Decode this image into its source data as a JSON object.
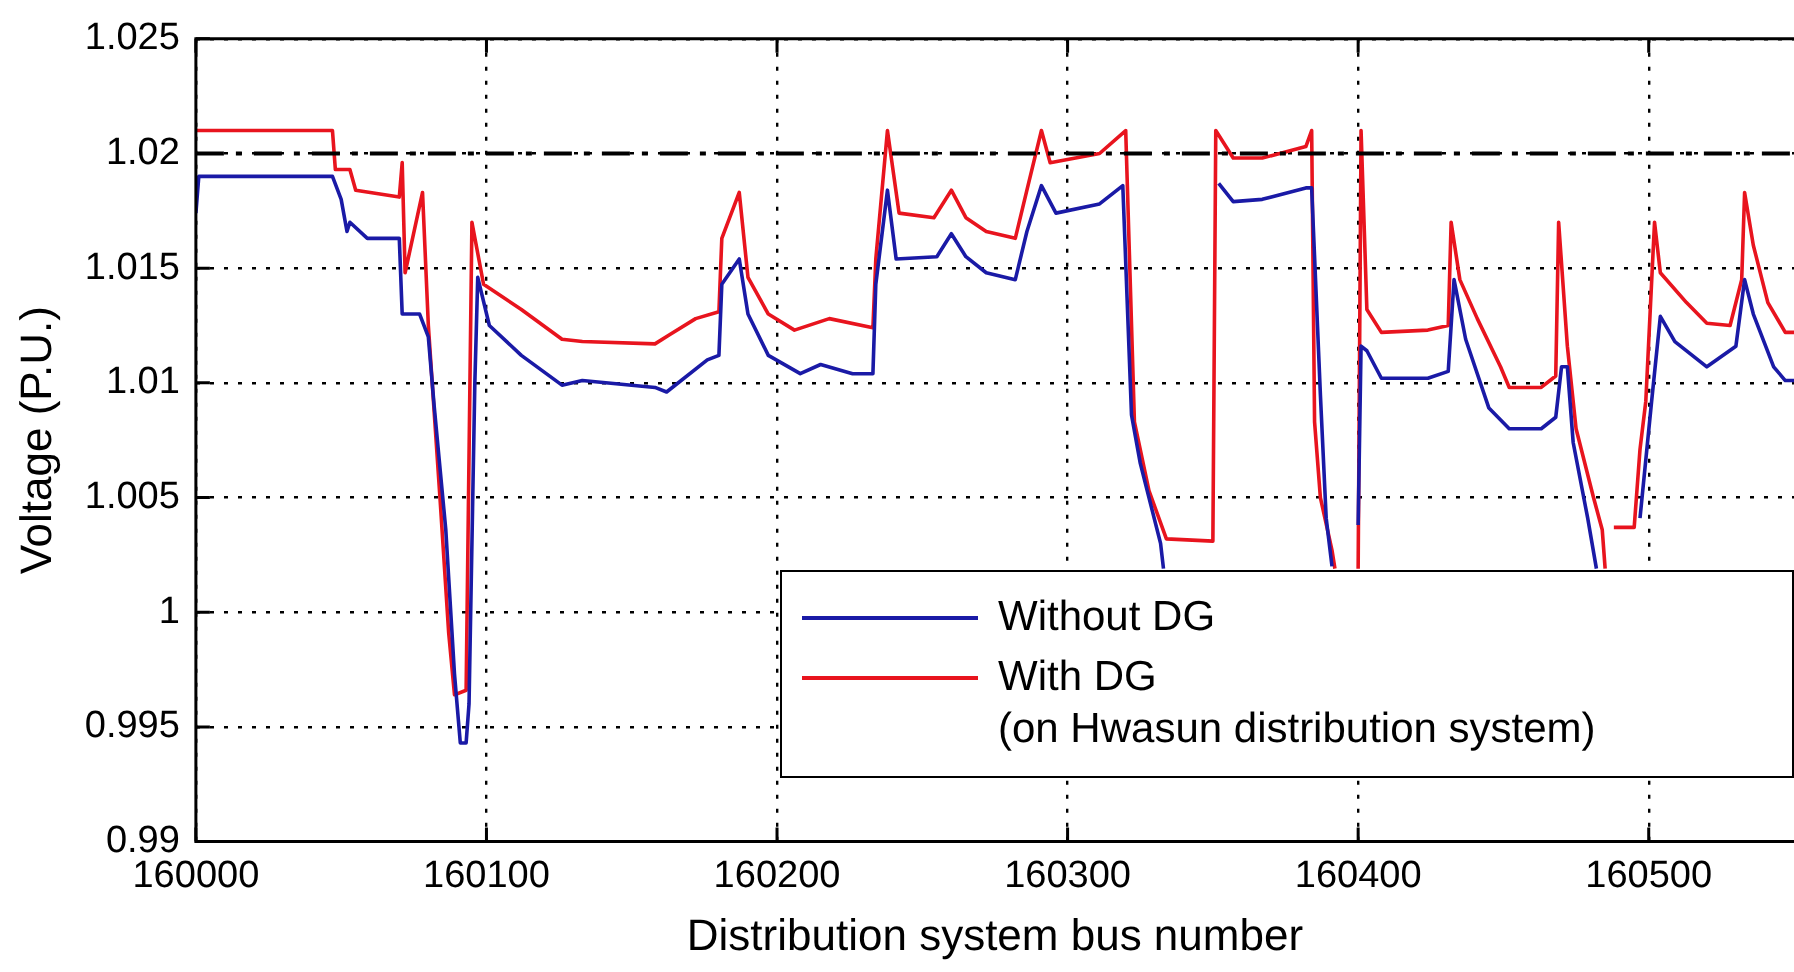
{
  "chart_data": {
    "type": "line",
    "xlabel": "Distribution system bus number",
    "ylabel": "Voltage (P.U.)",
    "xlim": [
      160000,
      160550
    ],
    "xticks": [
      160000,
      160100,
      160200,
      160300,
      160400,
      160500
    ],
    "ylim": [
      0.99,
      1.025
    ],
    "yticks": [
      0.99,
      0.995,
      1,
      1.005,
      1.01,
      1.015,
      1.02,
      1.025
    ],
    "grid": true,
    "legend": "bottom right",
    "marker": "none",
    "line_style": "solid",
    "ref_lines": [
      {
        "axis": "y",
        "value": 1.02,
        "color": "#000000",
        "line_style": "dashed"
      }
    ],
    "series": [
      {
        "name": "Without DG",
        "color": "#1a1aa6",
        "x": [
          160000,
          160001,
          160047,
          160050,
          160052,
          160053,
          160059,
          160070,
          160071,
          160077,
          160080,
          160082,
          160086,
          160089,
          160091,
          160093,
          160094,
          160096,
          160097,
          160101,
          160112,
          160126,
          160133,
          160158,
          160162,
          160176,
          160180,
          160181,
          160187,
          160190,
          160197,
          160208,
          160215,
          160226,
          160233,
          160234,
          160238,
          160241,
          160255,
          160260,
          160265,
          160272,
          160282,
          160286,
          160291,
          160296,
          160311,
          160319,
          160322,
          160325,
          160332,
          160333,
          160351,
          160352,
          160357,
          160367,
          160382,
          160384,
          160387,
          160389,
          160391,
          160399,
          160400,
          160401,
          160403,
          160408,
          160424,
          160431,
          160433,
          160437,
          160445,
          160452,
          160463,
          160468,
          160470,
          160472,
          160474,
          160479,
          160482,
          160495,
          160497,
          160501,
          160504,
          160509,
          160520,
          160530,
          160533,
          160536,
          160543,
          160547,
          160550
        ],
        "values": [
          1.0174,
          1.019,
          1.019,
          1.018,
          1.0166,
          1.017,
          1.0163,
          1.0163,
          1.013,
          1.013,
          1.012,
          1.009,
          1.0036,
          0.9973,
          0.9943,
          0.9943,
          0.996,
          1.01,
          1.0146,
          1.0125,
          1.0112,
          1.0099,
          1.0101,
          1.0098,
          1.0096,
          1.011,
          1.0112,
          1.0143,
          1.0154,
          1.013,
          1.0112,
          1.0104,
          1.0108,
          1.0104,
          1.0104,
          1.0143,
          1.0184,
          1.0154,
          1.0155,
          1.0165,
          1.0155,
          1.0148,
          1.0145,
          1.0166,
          1.0186,
          1.0174,
          1.0178,
          1.0186,
          1.0086,
          1.0065,
          1.003,
          1.0019,
          null,
          1.0187,
          1.0179,
          1.018,
          1.0185,
          1.0185,
          1.0095,
          1.0041,
          1.002,
          null,
          1.0038,
          1.0116,
          1.0114,
          1.0102,
          1.0102,
          1.0105,
          1.0145,
          1.0119,
          1.0089,
          1.008,
          1.008,
          1.0085,
          1.0107,
          1.0107,
          1.0074,
          1.0041,
          1.0019,
          null,
          1.0041,
          1.0092,
          1.0129,
          1.0118,
          1.0107,
          1.0116,
          1.0145,
          1.013,
          1.0107,
          1.0101,
          1.0101
        ]
      },
      {
        "name": "With DG\n(on Hwasun distribution system)",
        "color": "#e8141e",
        "x": [
          160000,
          160047,
          160048,
          160053,
          160055,
          160070,
          160071,
          160072,
          160078,
          160080,
          160084,
          160087,
          160089,
          160093,
          160095,
          160099,
          160112,
          160126,
          160133,
          160158,
          160163,
          160172,
          160180,
          160181,
          160187,
          160190,
          160197,
          160206,
          160218,
          160233,
          160234,
          160238,
          160242,
          160254,
          160260,
          160265,
          160272,
          160282,
          160286,
          160291,
          160294,
          160311,
          160320,
          160323,
          160328,
          160334,
          160350,
          160351,
          160357,
          160367,
          160382,
          160384,
          160385,
          160387,
          160391,
          160392,
          160399,
          160400,
          160401,
          160403,
          160408,
          160424,
          160431,
          160432,
          160435,
          160441,
          160449,
          160452,
          160463,
          160468,
          160469,
          160472,
          160475,
          160481,
          160484,
          160485,
          160486,
          160488,
          160495,
          160497,
          160499,
          160502,
          160504,
          160513,
          160520,
          160528,
          160532,
          160533,
          160536,
          160541,
          160547,
          160550
        ],
        "values": [
          1.021,
          1.021,
          1.0193,
          1.0193,
          1.0184,
          1.0181,
          1.0196,
          1.0148,
          1.0183,
          1.0125,
          1.005,
          0.9991,
          0.9964,
          0.9966,
          1.017,
          1.0143,
          1.0132,
          1.0119,
          1.0118,
          1.0117,
          1.0121,
          1.0128,
          1.0131,
          1.0163,
          1.0183,
          1.0146,
          1.013,
          1.0123,
          1.0128,
          1.0124,
          1.0154,
          1.021,
          1.0174,
          1.0172,
          1.0184,
          1.0172,
          1.0166,
          1.0163,
          1.0184,
          1.021,
          1.0196,
          1.02,
          1.021,
          1.0083,
          1.0053,
          1.0032,
          1.0031,
          1.021,
          1.0198,
          1.0198,
          1.0203,
          1.021,
          1.0083,
          1.005,
          1.0027,
          1.0019,
          null,
          1.0019,
          1.021,
          1.0132,
          1.0122,
          1.0123,
          1.0125,
          1.017,
          1.0145,
          1.0128,
          1.0107,
          1.0098,
          1.0098,
          1.0103,
          1.017,
          1.0116,
          1.008,
          1.005,
          1.0036,
          1.0019,
          null,
          1.0037,
          1.0037,
          1.0071,
          1.0092,
          1.017,
          1.0148,
          1.0135,
          1.0126,
          1.0125,
          1.0145,
          1.0183,
          1.016,
          1.0135,
          1.0122,
          1.0122
        ]
      }
    ]
  }
}
